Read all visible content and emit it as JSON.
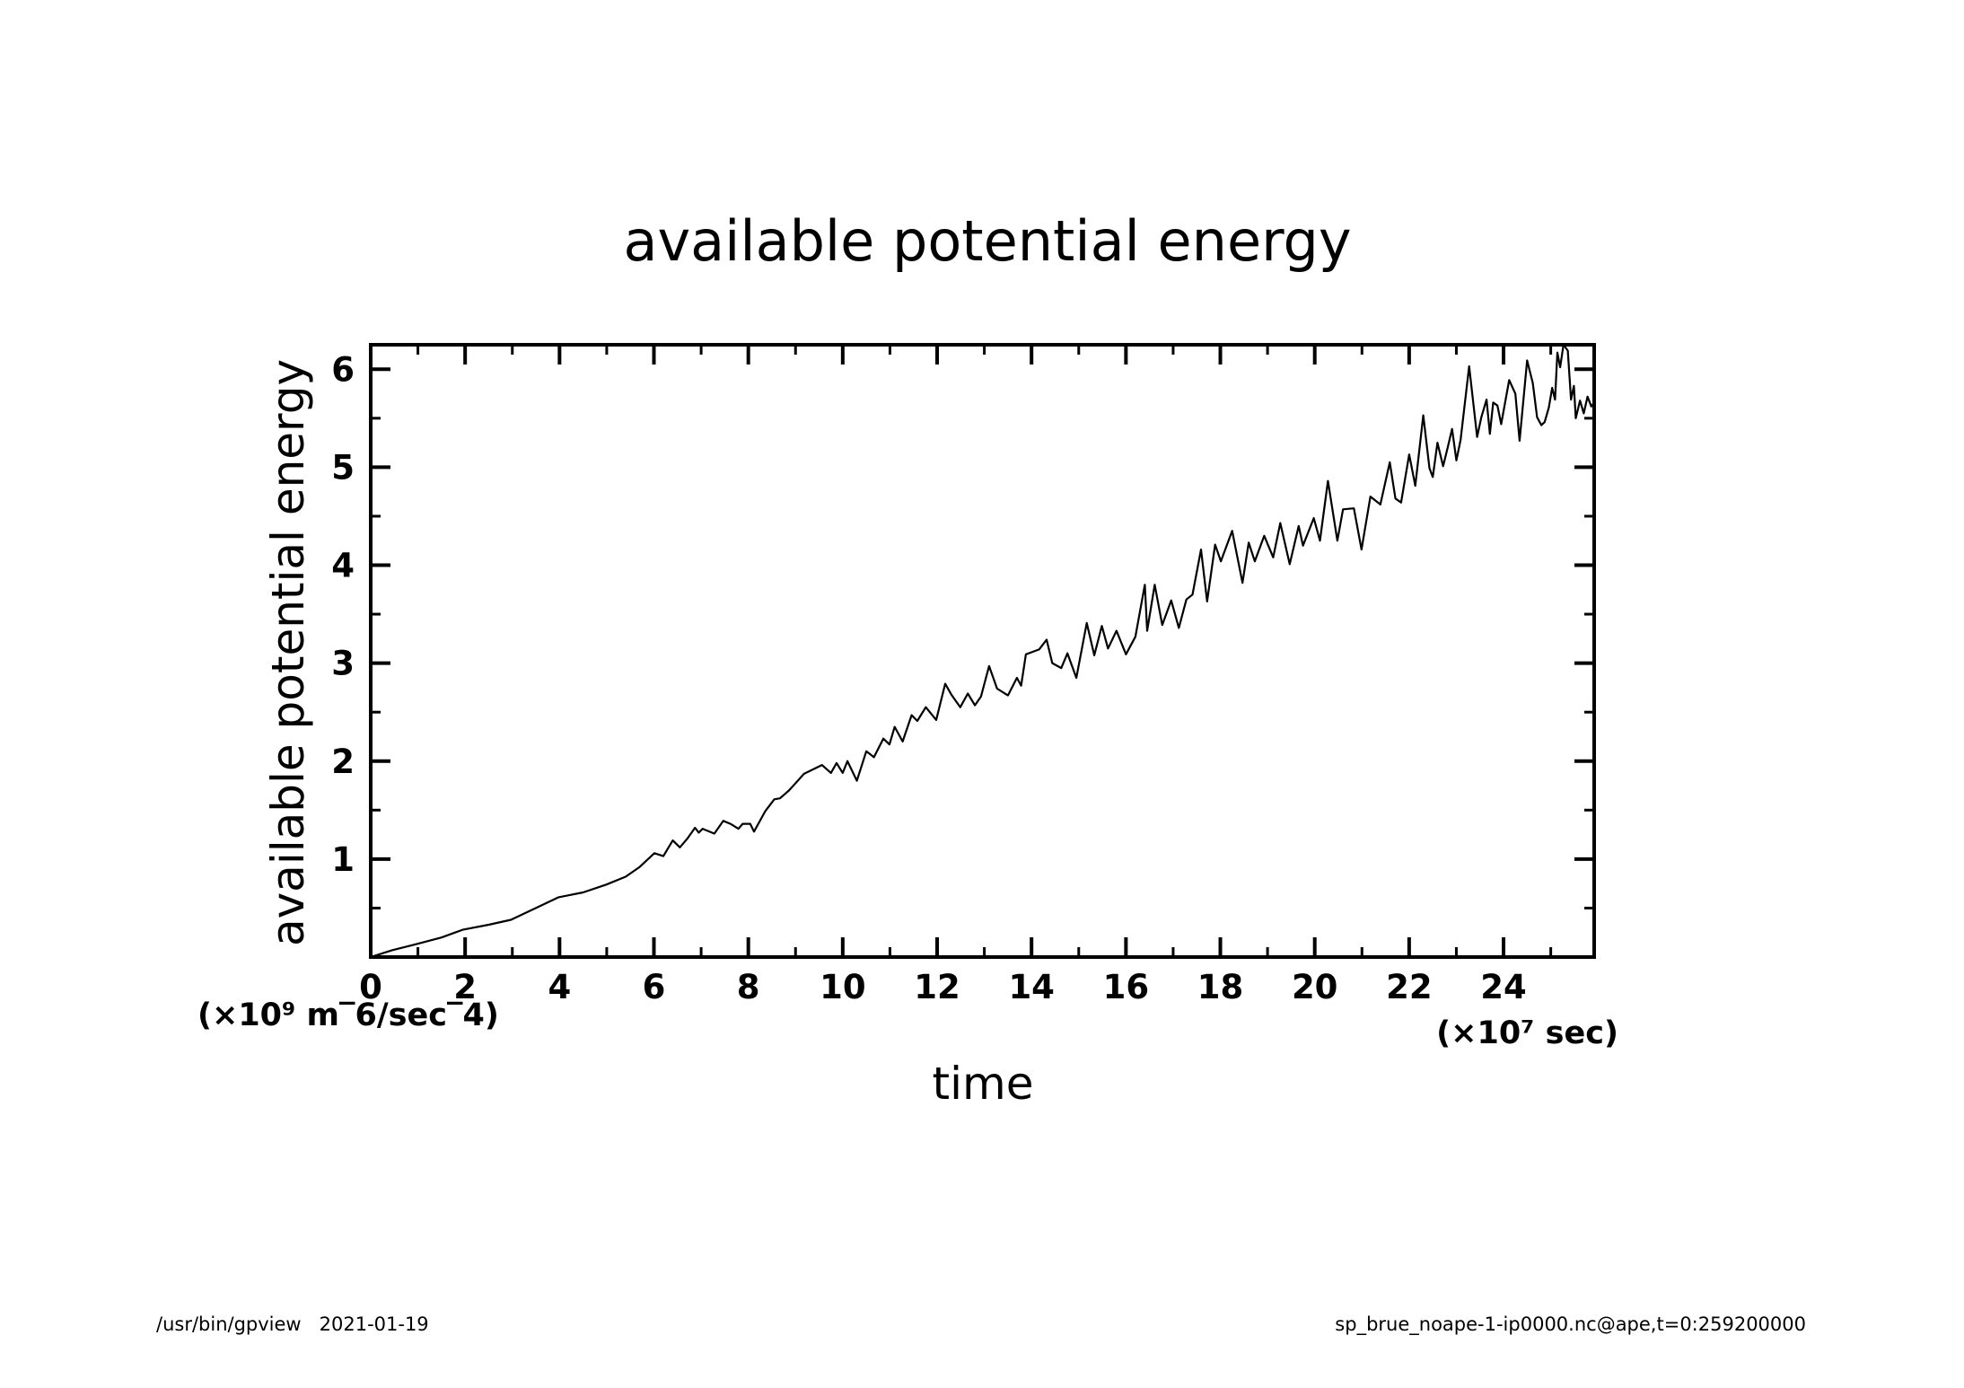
{
  "chart_data": {
    "type": "line",
    "title": "available potential energy",
    "xlabel": "time",
    "ylabel": "available potential energy",
    "x_unit_label": "(×10⁷ sec)",
    "y_unit_label": "(×10⁹ m‾6/sec‾4)",
    "xlim": [
      0,
      25.92
    ],
    "ylim": [
      0,
      6.25
    ],
    "x_major_ticks": [
      0,
      2,
      4,
      6,
      8,
      10,
      12,
      14,
      16,
      18,
      20,
      22,
      24
    ],
    "x_tick_labels": [
      "0",
      "2",
      "4",
      "6",
      "8",
      "10",
      "12",
      "14",
      "16",
      "18",
      "20",
      "22",
      "24"
    ],
    "x_minor_ticks": [
      1,
      3,
      5,
      7,
      9,
      11,
      13,
      15,
      17,
      19,
      21,
      23,
      25
    ],
    "y_major_ticks": [
      1,
      2,
      3,
      4,
      5,
      6
    ],
    "y_tick_labels": [
      "1",
      "2",
      "3",
      "4",
      "5",
      "6"
    ],
    "y_minor_ticks": [
      0.5,
      1.5,
      2.5,
      3.5,
      4.5,
      5.5
    ],
    "grid": false,
    "legend": "none",
    "series": [
      {
        "name": "available potential energy",
        "color": "#000000",
        "x": [
          0,
          0.45,
          0.95,
          1.5,
          1.96,
          2.5,
          2.97,
          3.5,
          3.98,
          4.5,
          4.99,
          5.4,
          5.7,
          6.01,
          6.2,
          6.4,
          6.55,
          6.71,
          6.87,
          6.95,
          7.03,
          7.28,
          7.47,
          7.62,
          7.79,
          7.88,
          8.04,
          8.12,
          8.36,
          8.55,
          8.67,
          8.86,
          9.18,
          9.56,
          9.75,
          9.87,
          10.0,
          10.1,
          10.3,
          10.5,
          10.66,
          10.86,
          10.99,
          11.1,
          11.27,
          11.46,
          11.58,
          11.76,
          11.98,
          12.17,
          12.3,
          12.49,
          12.65,
          12.8,
          12.93,
          13.1,
          13.27,
          13.5,
          13.69,
          13.78,
          13.88,
          14.16,
          14.32,
          14.44,
          14.63,
          14.76,
          14.95,
          15.17,
          15.33,
          15.49,
          15.62,
          15.8,
          16.0,
          16.2,
          16.4,
          16.45,
          16.61,
          16.77,
          16.96,
          17.12,
          17.28,
          17.41,
          17.59,
          17.72,
          17.89,
          18.01,
          18.25,
          18.47,
          18.6,
          18.73,
          18.93,
          19.12,
          19.27,
          19.47,
          19.66,
          19.75,
          19.98,
          20.11,
          20.28,
          20.48,
          20.6,
          20.83,
          20.99,
          21.18,
          21.39,
          21.59,
          21.71,
          21.83,
          22.0,
          22.13,
          22.3,
          22.43,
          22.5,
          22.6,
          22.72,
          22.81,
          22.91,
          23.0,
          23.09,
          23.27,
          23.44,
          23.53,
          23.64,
          23.71,
          23.78,
          23.87,
          23.95,
          24.12,
          24.25,
          24.34,
          24.5,
          24.62,
          24.71,
          24.8,
          24.87,
          24.96,
          25.03,
          25.09,
          25.14,
          25.2,
          25.27,
          25.36,
          25.43,
          25.49,
          25.53,
          25.62,
          25.7,
          25.78,
          25.86,
          25.92
        ],
        "y": [
          0.0,
          0.07,
          0.13,
          0.2,
          0.28,
          0.33,
          0.38,
          0.5,
          0.61,
          0.66,
          0.74,
          0.82,
          0.92,
          1.06,
          1.03,
          1.19,
          1.12,
          1.21,
          1.32,
          1.27,
          1.31,
          1.26,
          1.39,
          1.36,
          1.31,
          1.36,
          1.36,
          1.28,
          1.49,
          1.61,
          1.62,
          1.7,
          1.87,
          1.96,
          1.88,
          1.98,
          1.88,
          2.0,
          1.8,
          2.1,
          2.04,
          2.23,
          2.17,
          2.35,
          2.2,
          2.47,
          2.41,
          2.55,
          2.42,
          2.79,
          2.68,
          2.55,
          2.69,
          2.57,
          2.66,
          2.97,
          2.74,
          2.67,
          2.85,
          2.77,
          3.09,
          3.14,
          3.24,
          3.0,
          2.95,
          3.1,
          2.85,
          3.41,
          3.08,
          3.38,
          3.15,
          3.33,
          3.09,
          3.27,
          3.8,
          3.33,
          3.8,
          3.39,
          3.64,
          3.36,
          3.65,
          3.7,
          4.16,
          3.63,
          4.21,
          4.04,
          4.35,
          3.82,
          4.23,
          4.04,
          4.3,
          4.08,
          4.43,
          4.01,
          4.4,
          4.2,
          4.48,
          4.25,
          4.86,
          4.25,
          4.57,
          4.58,
          4.16,
          4.7,
          4.62,
          5.05,
          4.68,
          4.64,
          5.13,
          4.81,
          5.53,
          4.99,
          4.9,
          5.25,
          5.01,
          5.19,
          5.39,
          5.07,
          5.28,
          6.03,
          5.31,
          5.51,
          5.69,
          5.34,
          5.66,
          5.63,
          5.44,
          5.89,
          5.75,
          5.27,
          6.09,
          5.86,
          5.51,
          5.43,
          5.46,
          5.61,
          5.81,
          5.69,
          6.17,
          6.02,
          6.25,
          6.19,
          5.69,
          5.83,
          5.5,
          5.68,
          5.55,
          5.72,
          5.62,
          5.66
        ]
      }
    ]
  },
  "footer": {
    "left": "/usr/bin/gpview   2021-01-19",
    "right": "sp_brue_noape-1-ip0000.nc@ape,t=0:259200000"
  }
}
